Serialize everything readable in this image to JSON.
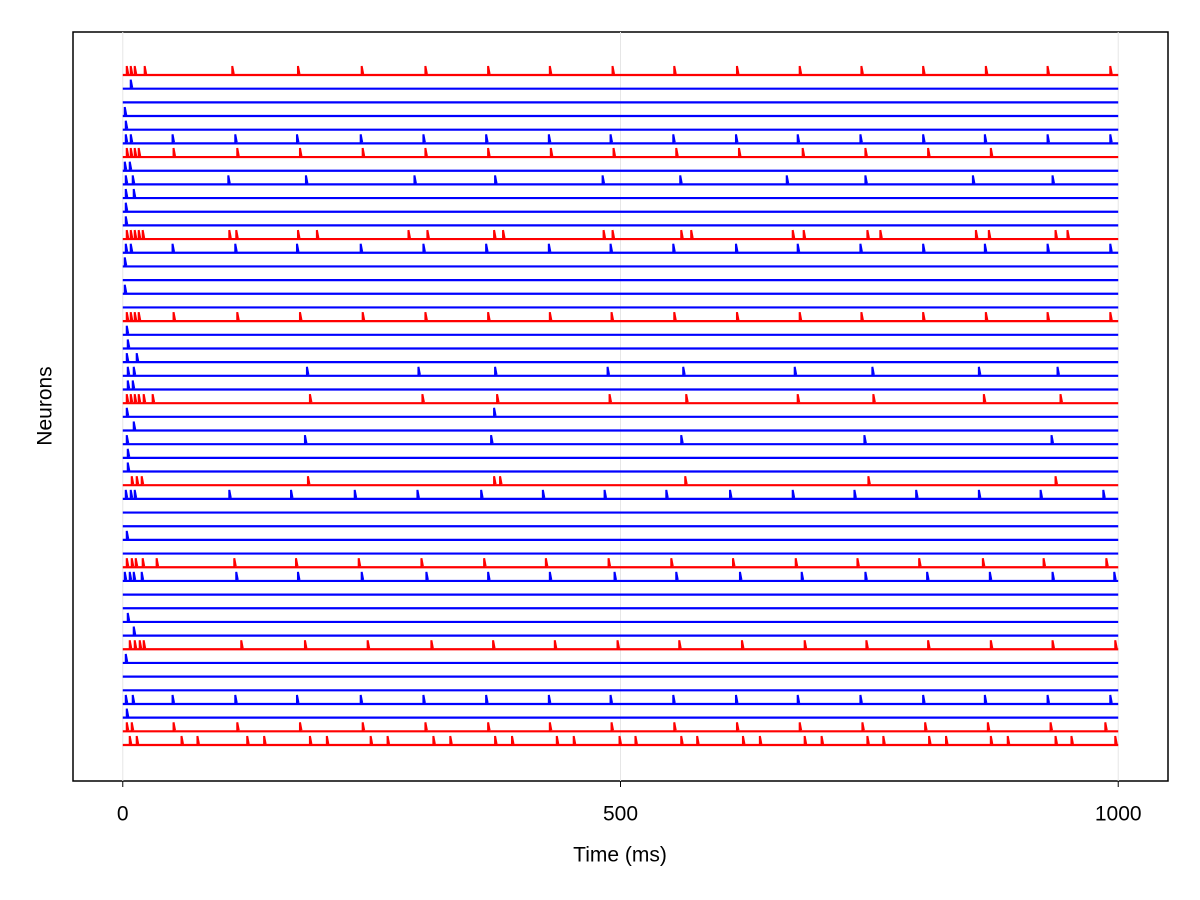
{
  "chart_data": {
    "type": "raster",
    "xlabel": "Time (ms)",
    "ylabel": "Neurons",
    "xlim": [
      -50,
      1050
    ],
    "xticks": [
      0,
      500,
      1000
    ],
    "grid": true,
    "series": [
      {
        "color": "#ff0000",
        "spikes": [
          4,
          8,
          12,
          22,
          110,
          176,
          240,
          304,
          367,
          429,
          492,
          554,
          617,
          680,
          742,
          804,
          867,
          929,
          992
        ]
      },
      {
        "color": "#0000ff",
        "spikes": [
          8
        ]
      },
      {
        "color": "#0000ff",
        "spikes": []
      },
      {
        "color": "#0000ff",
        "spikes": [
          2
        ]
      },
      {
        "color": "#0000ff",
        "spikes": [
          3
        ]
      },
      {
        "color": "#0000ff",
        "spikes": [
          3,
          8,
          50,
          113,
          175,
          239,
          302,
          365,
          428,
          490,
          553,
          616,
          678,
          741,
          804,
          866,
          929,
          992
        ]
      },
      {
        "color": "#ff0000",
        "spikes": [
          4,
          8,
          12,
          16,
          51,
          115,
          178,
          241,
          304,
          367,
          430,
          493,
          556,
          619,
          683,
          746,
          809,
          872
        ]
      },
      {
        "color": "#0000ff",
        "spikes": [
          2,
          7
        ]
      },
      {
        "color": "#0000ff",
        "spikes": [
          3,
          10,
          106,
          184,
          293,
          374,
          482,
          560,
          667,
          746,
          854,
          934
        ]
      },
      {
        "color": "#0000ff",
        "spikes": [
          3,
          11
        ]
      },
      {
        "color": "#0000ff",
        "spikes": [
          3
        ]
      },
      {
        "color": "#0000ff",
        "spikes": [
          3
        ]
      },
      {
        "color": "#ff0000",
        "spikes": [
          4,
          8,
          12,
          16,
          20,
          107,
          114,
          176,
          195,
          287,
          306,
          373,
          382,
          483,
          492,
          561,
          571,
          673,
          684,
          748,
          761,
          857,
          870,
          937,
          949
        ]
      },
      {
        "color": "#0000ff",
        "spikes": [
          3,
          8,
          50,
          113,
          175,
          239,
          302,
          365,
          428,
          490,
          553,
          616,
          678,
          741,
          804,
          866,
          929,
          992
        ]
      },
      {
        "color": "#0000ff",
        "spikes": [
          2
        ]
      },
      {
        "color": "#0000ff",
        "spikes": []
      },
      {
        "color": "#0000ff",
        "spikes": [
          2
        ]
      },
      {
        "color": "#0000ff",
        "spikes": []
      },
      {
        "color": "#ff0000",
        "spikes": [
          4,
          8,
          12,
          16,
          51,
          115,
          178,
          241,
          304,
          367,
          429,
          491,
          554,
          617,
          680,
          742,
          804,
          867,
          929,
          992
        ]
      },
      {
        "color": "#0000ff",
        "spikes": [
          4
        ]
      },
      {
        "color": "#0000ff",
        "spikes": [
          5
        ]
      },
      {
        "color": "#0000ff",
        "spikes": [
          4,
          14
        ]
      },
      {
        "color": "#0000ff",
        "spikes": [
          5,
          11,
          185,
          297,
          374,
          487,
          563,
          675,
          753,
          860,
          939
        ]
      },
      {
        "color": "#0000ff",
        "spikes": [
          5,
          10
        ]
      },
      {
        "color": "#ff0000",
        "spikes": [
          4,
          8,
          12,
          16,
          21,
          30,
          188,
          301,
          376,
          489,
          566,
          678,
          754,
          865,
          942
        ]
      },
      {
        "color": "#0000ff",
        "spikes": [
          4,
          373
        ]
      },
      {
        "color": "#0000ff",
        "spikes": [
          11
        ]
      },
      {
        "color": "#0000ff",
        "spikes": [
          4,
          183,
          370,
          561,
          745,
          933
        ]
      },
      {
        "color": "#0000ff",
        "spikes": [
          5
        ]
      },
      {
        "color": "#0000ff",
        "spikes": [
          5
        ]
      },
      {
        "color": "#ff0000",
        "spikes": [
          9,
          14,
          19,
          186,
          373,
          379,
          565,
          749,
          937
        ]
      },
      {
        "color": "#0000ff",
        "spikes": [
          3,
          8,
          12,
          107,
          169,
          233,
          296,
          360,
          422,
          484,
          546,
          610,
          673,
          735,
          797,
          860,
          922,
          985
        ]
      },
      {
        "color": "#0000ff",
        "spikes": []
      },
      {
        "color": "#0000ff",
        "spikes": []
      },
      {
        "color": "#0000ff",
        "spikes": [
          4
        ]
      },
      {
        "color": "#0000ff",
        "spikes": []
      },
      {
        "color": "#ff0000",
        "spikes": [
          4,
          9,
          13,
          20,
          34,
          112,
          174,
          237,
          300,
          363,
          425,
          488,
          551,
          613,
          676,
          738,
          800,
          864,
          925,
          988
        ]
      },
      {
        "color": "#0000ff",
        "spikes": [
          2,
          7,
          11,
          19,
          114,
          176,
          240,
          305,
          367,
          429,
          494,
          556,
          620,
          682,
          746,
          808,
          871,
          934,
          996
        ]
      },
      {
        "color": "#0000ff",
        "spikes": []
      },
      {
        "color": "#0000ff",
        "spikes": []
      },
      {
        "color": "#0000ff",
        "spikes": [
          5
        ]
      },
      {
        "color": "#0000ff",
        "spikes": [
          11
        ]
      },
      {
        "color": "#ff0000",
        "spikes": [
          7,
          12,
          17,
          21,
          119,
          183,
          246,
          310,
          372,
          434,
          497,
          559,
          622,
          685,
          747,
          809,
          872,
          934,
          997
        ]
      },
      {
        "color": "#0000ff",
        "spikes": [
          3
        ]
      },
      {
        "color": "#0000ff",
        "spikes": []
      },
      {
        "color": "#0000ff",
        "spikes": []
      },
      {
        "color": "#0000ff",
        "spikes": [
          3,
          10,
          50,
          113,
          175,
          239,
          302,
          365,
          428,
          490,
          553,
          616,
          678,
          741,
          804,
          866,
          929,
          992
        ]
      },
      {
        "color": "#0000ff",
        "spikes": [
          4
        ]
      },
      {
        "color": "#ff0000",
        "spikes": [
          4,
          9,
          51,
          115,
          178,
          241,
          304,
          367,
          429,
          491,
          554,
          617,
          680,
          743,
          806,
          869,
          932,
          987
        ]
      },
      {
        "color": "#ff0000",
        "spikes": [
          7,
          14,
          59,
          75,
          125,
          142,
          188,
          205,
          249,
          266,
          312,
          329,
          374,
          391,
          436,
          453,
          499,
          515,
          561,
          577,
          623,
          640,
          685,
          702,
          748,
          764,
          810,
          827,
          872,
          889,
          937,
          953,
          997
        ]
      }
    ]
  }
}
